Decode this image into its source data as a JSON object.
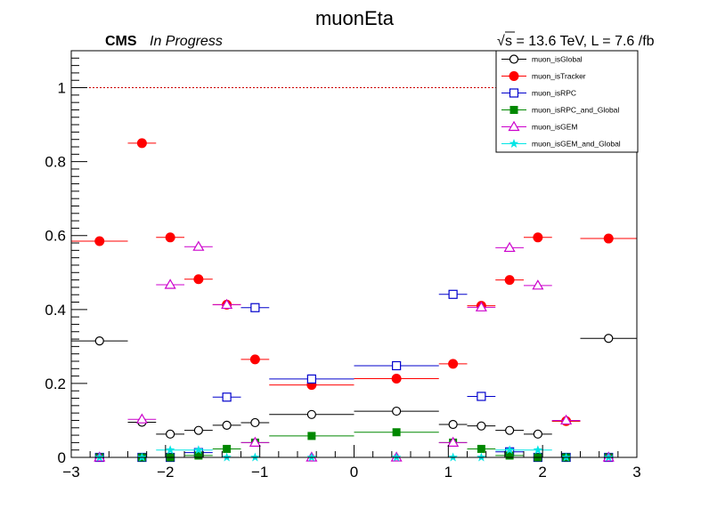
{
  "header": {
    "title": "muonEta",
    "experiment": "CMS",
    "status": "In Progress",
    "sqrt_symbol": "√",
    "energy_label": "s = 13.6 TeV, L = 7.6 /fb"
  },
  "chart_data": {
    "type": "scatter",
    "title": "muonEta",
    "xlabel": "",
    "ylabel": "",
    "xlim": [
      -3,
      3
    ],
    "ylim": [
      0,
      1.1
    ],
    "x_ticks": [
      -3,
      -2,
      -1,
      0,
      1,
      2,
      3
    ],
    "x_tick_labels": [
      "−3",
      "−2",
      "−1",
      "0",
      "1",
      "2",
      "3"
    ],
    "y_ticks": [
      0,
      0.2,
      0.4,
      0.6,
      0.8,
      1
    ],
    "y_tick_labels": [
      "0",
      "0.2",
      "0.4",
      "0.6",
      "0.8",
      "1"
    ],
    "grid": false,
    "reference_line": {
      "y": 1.0,
      "style": "dashed",
      "color": "#cc0000"
    },
    "legend_position": "top-right",
    "bins": [
      -3.0,
      -2.4,
      -2.1,
      -1.8,
      -1.5,
      -1.2,
      -0.9,
      0.0,
      0.9,
      1.2,
      1.5,
      1.8,
      2.1,
      2.4,
      3.0
    ],
    "series": [
      {
        "name": "muon_isGlobal",
        "color": "#000000",
        "marker": "open-circle",
        "values": [
          0.315,
          0.095,
          0.063,
          0.073,
          0.087,
          0.094,
          0.116,
          0.125,
          0.089,
          0.085,
          0.073,
          0.063,
          0.098,
          0.322
        ]
      },
      {
        "name": "muon_isTracker",
        "color": "#ff0000",
        "marker": "filled-circle",
        "values": [
          0.585,
          0.85,
          0.595,
          0.482,
          0.413,
          0.265,
          0.196,
          0.213,
          0.253,
          0.41,
          0.48,
          0.595,
          0.098,
          0.592
        ]
      },
      {
        "name": "muon_isRPC",
        "color": "#0000cc",
        "marker": "open-square",
        "values": [
          0.0,
          0.0,
          0.0,
          0.013,
          0.163,
          0.405,
          0.212,
          0.248,
          0.441,
          0.165,
          0.015,
          0.0,
          0.0,
          0.0
        ]
      },
      {
        "name": "muon_isRPC_and_Global",
        "color": "#008800",
        "marker": "filled-square",
        "values": [
          0.0,
          0.0,
          0.0,
          0.005,
          0.023,
          0.04,
          0.058,
          0.068,
          0.04,
          0.023,
          0.005,
          0.0,
          0.0,
          0.0
        ]
      },
      {
        "name": "muon_isGEM",
        "color": "#cc00cc",
        "marker": "open-triangle",
        "values": [
          0.0,
          0.103,
          0.467,
          0.57,
          0.413,
          0.04,
          0.0,
          0.0,
          0.04,
          0.406,
          0.567,
          0.465,
          0.1,
          0.0
        ]
      },
      {
        "name": "muon_isGEM_and_Global",
        "color": "#00e5e5",
        "marker": "filled-star",
        "values": [
          0.0,
          0.0,
          0.02,
          0.02,
          0.0,
          0.0,
          0.0,
          0.0,
          0.0,
          0.0,
          0.02,
          0.02,
          0.0,
          0.0
        ]
      }
    ]
  }
}
